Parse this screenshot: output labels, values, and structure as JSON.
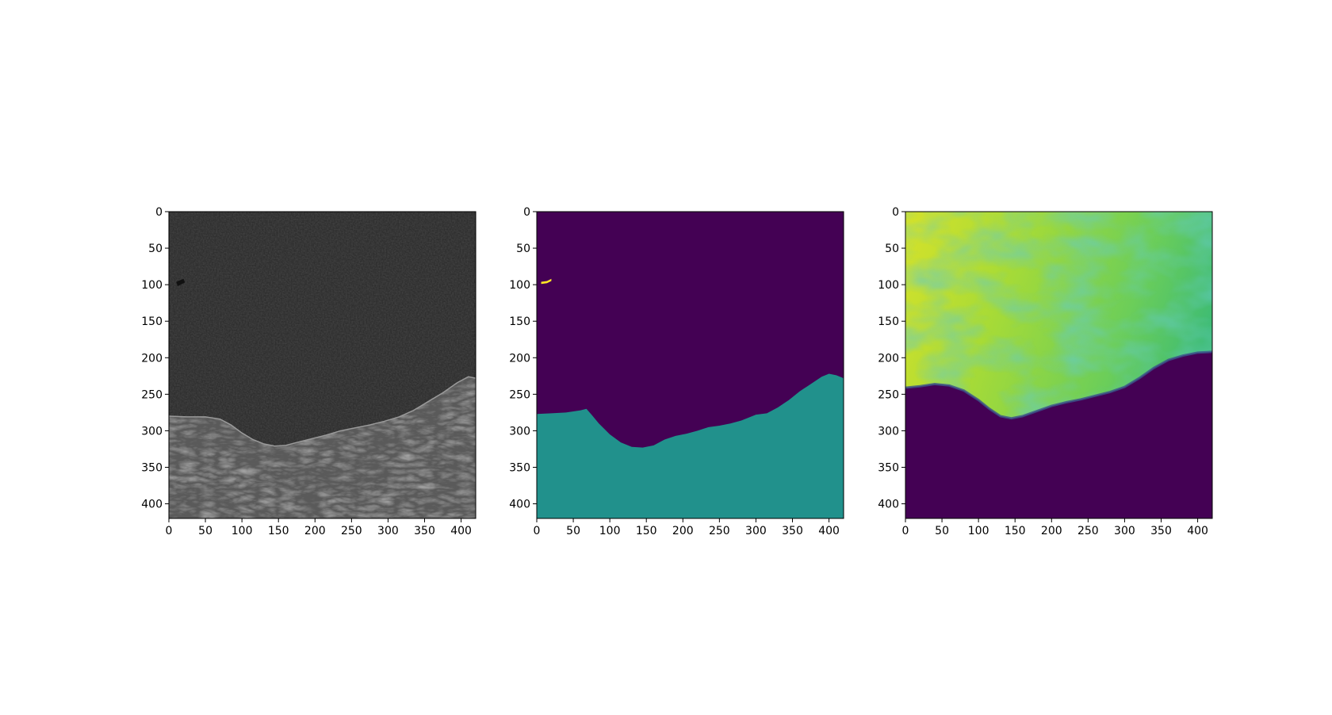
{
  "chart_data": [
    {
      "type": "heatmap",
      "colormap": "gray",
      "content": "SAR intensity image: dark sea in upper part, bright textured land in lower part",
      "xlim": [
        0,
        420
      ],
      "ylim": [
        420,
        0
      ],
      "xticks": [
        0,
        50,
        100,
        150,
        200,
        250,
        300,
        350,
        400
      ],
      "yticks": [
        0,
        50,
        100,
        150,
        200,
        250,
        300,
        350,
        400
      ],
      "coastline": [
        [
          0,
          280
        ],
        [
          25,
          281
        ],
        [
          50,
          281
        ],
        [
          70,
          284
        ],
        [
          85,
          292
        ],
        [
          100,
          303
        ],
        [
          115,
          312
        ],
        [
          130,
          318
        ],
        [
          145,
          321
        ],
        [
          160,
          320
        ],
        [
          175,
          316
        ],
        [
          195,
          311
        ],
        [
          215,
          306
        ],
        [
          235,
          300
        ],
        [
          255,
          296
        ],
        [
          275,
          292
        ],
        [
          295,
          287
        ],
        [
          315,
          281
        ],
        [
          335,
          272
        ],
        [
          355,
          260
        ],
        [
          375,
          248
        ],
        [
          395,
          234
        ],
        [
          410,
          226
        ],
        [
          420,
          228
        ]
      ],
      "dark_spot": [
        [
          10,
          96
        ],
        [
          20,
          92
        ],
        [
          22,
          97
        ],
        [
          12,
          102
        ]
      ]
    },
    {
      "type": "heatmap",
      "colormap": "viridis",
      "categories": [
        "sea",
        "land",
        "feature"
      ],
      "colors": {
        "sea": "#440154",
        "land": "#21918c",
        "feature": "#fde725"
      },
      "xlim": [
        0,
        420
      ],
      "ylim": [
        420,
        0
      ],
      "xticks": [
        0,
        50,
        100,
        150,
        200,
        250,
        300,
        350,
        400
      ],
      "yticks": [
        0,
        50,
        100,
        150,
        200,
        250,
        300,
        350,
        400
      ],
      "boundary": [
        [
          0,
          277
        ],
        [
          20,
          276
        ],
        [
          40,
          275
        ],
        [
          60,
          272
        ],
        [
          68,
          270
        ],
        [
          75,
          278
        ],
        [
          85,
          290
        ],
        [
          100,
          305
        ],
        [
          115,
          316
        ],
        [
          130,
          322
        ],
        [
          145,
          323
        ],
        [
          160,
          320
        ],
        [
          175,
          312
        ],
        [
          190,
          307
        ],
        [
          205,
          304
        ],
        [
          220,
          300
        ],
        [
          235,
          295
        ],
        [
          250,
          293
        ],
        [
          265,
          290
        ],
        [
          280,
          286
        ],
        [
          300,
          278
        ],
        [
          315,
          276
        ],
        [
          330,
          268
        ],
        [
          345,
          258
        ],
        [
          360,
          246
        ],
        [
          375,
          236
        ],
        [
          390,
          226
        ],
        [
          400,
          222
        ],
        [
          410,
          224
        ],
        [
          420,
          228
        ]
      ],
      "feature_polygon": [
        [
          6,
          96
        ],
        [
          14,
          95
        ],
        [
          20,
          92
        ],
        [
          20,
          95
        ],
        [
          14,
          98
        ],
        [
          6,
          99
        ]
      ]
    },
    {
      "type": "heatmap",
      "colormap": "viridis",
      "content": "Continuous prediction map: high values (yellow-green) over sea, low values (dark purple) over land",
      "xlim": [
        0,
        420
      ],
      "ylim": [
        420,
        0
      ],
      "xticks": [
        0,
        50,
        100,
        150,
        200,
        250,
        300,
        350,
        400
      ],
      "yticks": [
        0,
        50,
        100,
        150,
        200,
        250,
        300,
        350,
        400
      ],
      "boundary": [
        [
          0,
          241
        ],
        [
          20,
          239
        ],
        [
          40,
          236
        ],
        [
          60,
          238
        ],
        [
          80,
          245
        ],
        [
          100,
          258
        ],
        [
          115,
          270
        ],
        [
          130,
          280
        ],
        [
          145,
          283
        ],
        [
          160,
          280
        ],
        [
          180,
          273
        ],
        [
          200,
          266
        ],
        [
          220,
          261
        ],
        [
          240,
          257
        ],
        [
          260,
          252
        ],
        [
          280,
          247
        ],
        [
          300,
          240
        ],
        [
          320,
          228
        ],
        [
          340,
          214
        ],
        [
          360,
          203
        ],
        [
          380,
          197
        ],
        [
          400,
          193
        ],
        [
          420,
          192
        ]
      ]
    }
  ]
}
